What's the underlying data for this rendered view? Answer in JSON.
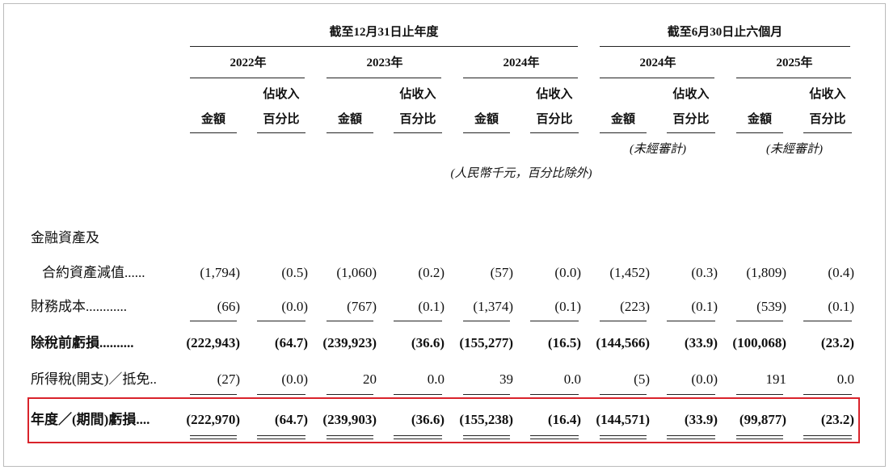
{
  "header": {
    "groups": [
      "截至12月31日止年度",
      "截至6月30日止六個月"
    ],
    "years": [
      {
        "year": "2022年",
        "amount": "金額",
        "pct": [
          "佔收入",
          "百分比"
        ]
      },
      {
        "year": "2023年",
        "amount": "金額",
        "pct": [
          "佔收入",
          "百分比"
        ]
      },
      {
        "year": "2024年",
        "amount": "金額",
        "pct": [
          "佔收入",
          "百分比"
        ]
      },
      {
        "year": "2024年",
        "amount": "金額",
        "pct": [
          "佔收入",
          "百分比"
        ],
        "note": "(未經審計)"
      },
      {
        "year": "2025年",
        "amount": "金額",
        "pct": [
          "佔收入",
          "百分比"
        ],
        "note": "(未經審計)"
      }
    ],
    "unit_note": "(人民幣千元，百分比除外)"
  },
  "rows": [
    {
      "label": [
        "金融資產及",
        "合約資產減值......"
      ],
      "values": [
        "(1,794)",
        "(0.5)",
        "(1,060)",
        "(0.2)",
        "(57)",
        "(0.0)",
        "(1,452)",
        "(0.3)",
        "(1,809)",
        "(0.4)"
      ]
    },
    {
      "label": [
        "財務成本............"
      ],
      "values": [
        "(66)",
        "(0.0)",
        "(767)",
        "(0.1)",
        "(1,374)",
        "(0.1)",
        "(223)",
        "(0.1)",
        "(539)",
        "(0.1)"
      ]
    },
    {
      "label": [
        "除稅前虧損.........."
      ],
      "bold": true,
      "values": [
        "(222,943)",
        "(64.7)",
        "(239,923)",
        "(36.6)",
        "(155,277)",
        "(16.5)",
        "(144,566)",
        "(33.9)",
        "(100,068)",
        "(23.2)"
      ]
    },
    {
      "label": [
        "所得稅(開支)／抵免.."
      ],
      "values": [
        "(27)",
        "(0.0)",
        "20",
        "0.0",
        "39",
        "0.0",
        "(5)",
        "(0.0)",
        "191",
        "0.0"
      ]
    },
    {
      "label": [
        "年度／(期間)虧損...."
      ],
      "bold": true,
      "values": [
        "(222,970)",
        "(64.7)",
        "(239,903)",
        "(36.6)",
        "(155,238)",
        "(16.4)",
        "(144,571)",
        "(33.9)",
        "(99,877)",
        "(23.2)"
      ]
    }
  ]
}
